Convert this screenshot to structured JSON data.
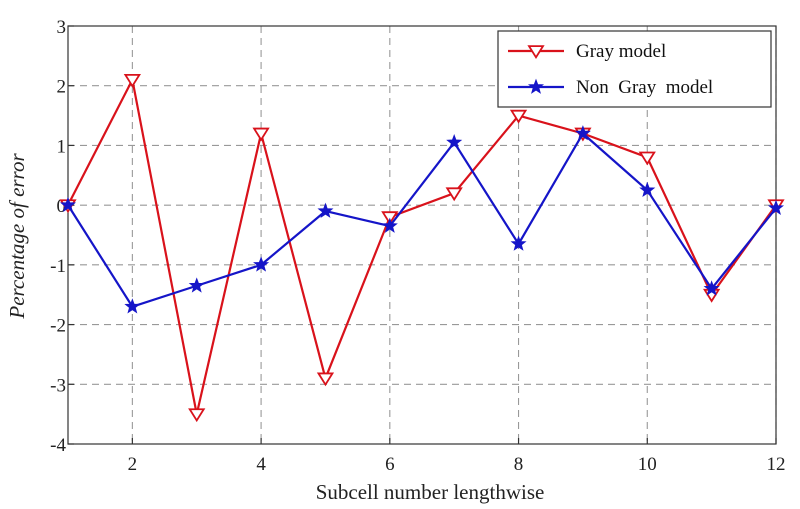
{
  "chart_data": {
    "type": "line",
    "title": "",
    "xlabel": "Subcell number lengthwise",
    "ylabel": "Percentage of error",
    "xlim": [
      1,
      12
    ],
    "ylim": [
      -4,
      3
    ],
    "xticks": [
      2,
      4,
      6,
      8,
      10,
      12
    ],
    "yticks": [
      -4,
      -3,
      -2,
      -1,
      0,
      1,
      2,
      3
    ],
    "grid": true,
    "legend_position": "top-right",
    "x": [
      1,
      2,
      3,
      4,
      5,
      6,
      7,
      8,
      9,
      10,
      11,
      12
    ],
    "series": [
      {
        "name": "Gray model",
        "color": "#d9121b",
        "marker": "triangle-down",
        "values": [
          0,
          2.1,
          -3.5,
          1.2,
          -2.9,
          -0.2,
          0.2,
          1.5,
          1.2,
          0.8,
          -1.5,
          0
        ]
      },
      {
        "name": "Non  Gray  model",
        "color": "#1515c8",
        "marker": "star",
        "values": [
          0,
          -1.7,
          -1.35,
          -1.0,
          -0.1,
          -0.35,
          1.05,
          -0.65,
          1.2,
          0.25,
          -1.4,
          -0.05
        ]
      }
    ]
  }
}
